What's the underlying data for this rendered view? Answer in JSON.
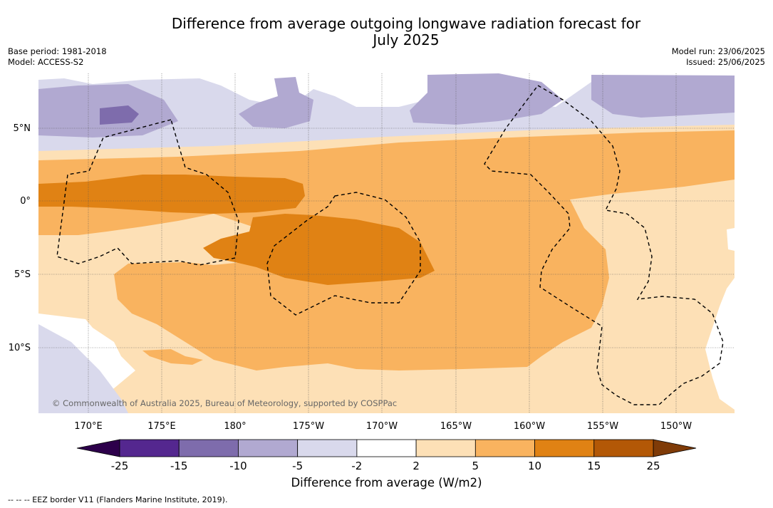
{
  "title_line1": "Difference from average outgoing longwave radiation forecast for",
  "title_line2": "July 2025",
  "base_period": "Base period: 1981-2018",
  "model": "Model: ACCESS-S2",
  "model_run": "Model run: 23/06/2025",
  "issued": "Issued: 25/06/2025",
  "copyright": "© Commonwealth of Australia 2025, Bureau of Meteorology, supported by COSPPac",
  "lat_labels": [
    "5°N",
    "0°",
    "5°S",
    "10°S"
  ],
  "lon_labels": [
    "170°E",
    "175°E",
    "180°",
    "175°W",
    "170°W",
    "165°W",
    "160°W",
    "155°W",
    "150°W"
  ],
  "colorbar": {
    "label": "Difference from average (W/m2)",
    "ticks": [
      "-25",
      "-15",
      "-10",
      "-5",
      "-2",
      "2",
      "5",
      "10",
      "15",
      "25"
    ],
    "colors": [
      "#54278f",
      "#7e6cac",
      "#b1a9d1",
      "#d9d9ec",
      "#ffffff",
      "#fde0b6",
      "#f9b35f",
      "#e08214",
      "#b35806"
    ],
    "extend_low": "#2d004b",
    "extend_high": "#7f3b08"
  },
  "footnote": "-- -- -- EEZ border V11 (Flanders Marine Institute, 2019)."
}
